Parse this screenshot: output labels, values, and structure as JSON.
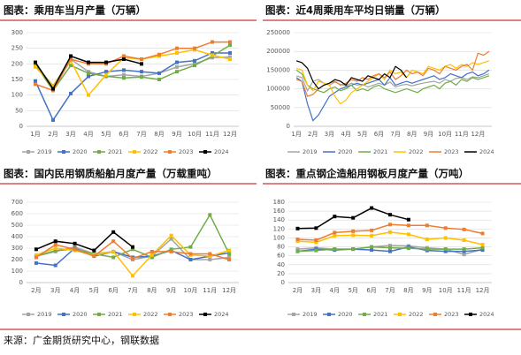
{
  "chart_data": [
    {
      "type": "line",
      "title": "图表：乘用车当月产量（万辆）",
      "markers": true,
      "categories": [
        "1月",
        "2月",
        "3月",
        "4月",
        "5月",
        "6月",
        "7月",
        "8月",
        "9月",
        "10月",
        "11月",
        "12月"
      ],
      "ylim": [
        0,
        300
      ],
      "yticks": [
        0,
        50,
        100,
        150,
        200,
        250,
        300
      ],
      "series": [
        {
          "name": "2019",
          "color": "#a5a5a5",
          "values": [
            197,
            130,
            215,
            175,
            160,
            165,
            160,
            170,
            190,
            200,
            220,
            222
          ]
        },
        {
          "name": "2020",
          "color": "#4472c4",
          "values": [
            145,
            20,
            105,
            160,
            175,
            180,
            175,
            170,
            205,
            210,
            235,
            235
          ]
        },
        {
          "name": "2021",
          "color": "#70ad47",
          "values": [
            198,
            115,
            195,
            170,
            160,
            155,
            158,
            150,
            175,
            195,
            225,
            260
          ]
        },
        {
          "name": "2022",
          "color": "#ffc000",
          "values": [
            190,
            130,
            210,
            100,
            165,
            220,
            215,
            225,
            235,
            245,
            228,
            215
          ]
        },
        {
          "name": "2023",
          "color": "#ed7d31",
          "values": [
            135,
            115,
            215,
            200,
            200,
            225,
            215,
            230,
            250,
            250,
            270,
            270
          ]
        },
        {
          "name": "2024",
          "color": "#000000",
          "values": [
            205,
            120,
            225,
            205,
            205,
            215,
            200,
            null,
            null,
            null,
            null,
            null
          ]
        }
      ]
    },
    {
      "type": "line",
      "title": "图表：近4周乘用车平均日销量（万辆）",
      "markers": false,
      "categories": [
        "1月",
        null,
        null,
        "2月",
        null,
        null,
        "3月",
        null,
        null,
        "4月",
        null,
        null,
        "5月",
        null,
        null,
        "6月",
        null,
        null,
        "7月",
        null,
        null,
        "8月",
        null,
        null,
        "9月",
        null,
        null,
        "10月",
        null,
        null,
        "11月",
        null,
        null,
        "12月",
        null,
        null
      ],
      "ylim": [
        0,
        250000
      ],
      "yticks": [
        0,
        50000,
        100000,
        150000,
        200000,
        250000
      ],
      "series": [
        {
          "name": "2019",
          "color": "#a5a5a5",
          "values": [
            135000,
            130000,
            95000,
            120000,
            125000,
            115000,
            110000,
            118000,
            112000,
            108000,
            115000,
            110000,
            112000,
            105000,
            110000,
            115000,
            110000,
            118000,
            105000,
            110000,
            112000,
            108000,
            112000,
            115000,
            118000,
            120000,
            115000,
            125000,
            120000,
            128000,
            130000,
            125000,
            132000,
            130000,
            135000,
            140000
          ]
        },
        {
          "name": "2020",
          "color": "#4472c4",
          "values": [
            130000,
            120000,
            60000,
            15000,
            30000,
            55000,
            80000,
            90000,
            100000,
            105000,
            110000,
            115000,
            110000,
            115000,
            120000,
            125000,
            110000,
            130000,
            110000,
            115000,
            120000,
            115000,
            120000,
            125000,
            130000,
            135000,
            125000,
            130000,
            140000,
            135000,
            130000,
            140000,
            145000,
            135000,
            140000,
            150000
          ]
        },
        {
          "name": "2021",
          "color": "#70ad47",
          "values": [
            150000,
            140000,
            110000,
            100000,
            95000,
            90000,
            100000,
            105000,
            95000,
            100000,
            110000,
            95000,
            100000,
            95000,
            105000,
            110000,
            100000,
            95000,
            90000,
            95000,
            100000,
            95000,
            90000,
            100000,
            105000,
            110000,
            100000,
            115000,
            120000,
            110000,
            125000,
            120000,
            130000,
            125000,
            130000,
            135000
          ]
        },
        {
          "name": "2022",
          "color": "#ffc000",
          "values": [
            155000,
            150000,
            110000,
            95000,
            120000,
            115000,
            110000,
            80000,
            60000,
            70000,
            90000,
            100000,
            110000,
            120000,
            130000,
            140000,
            125000,
            150000,
            140000,
            145000,
            130000,
            150000,
            145000,
            140000,
            160000,
            155000,
            150000,
            160000,
            165000,
            155000,
            165000,
            160000,
            170000,
            165000,
            170000,
            175000
          ]
        },
        {
          "name": "2023",
          "color": "#ed7d31",
          "values": [
            125000,
            120000,
            80000,
            85000,
            100000,
            110000,
            115000,
            120000,
            110000,
            115000,
            125000,
            120000,
            130000,
            125000,
            135000,
            140000,
            130000,
            145000,
            125000,
            135000,
            150000,
            140000,
            145000,
            135000,
            155000,
            150000,
            140000,
            160000,
            155000,
            150000,
            160000,
            165000,
            150000,
            195000,
            190000,
            200000
          ]
        },
        {
          "name": "2024",
          "color": "#000000",
          "values": [
            175000,
            170000,
            155000,
            120000,
            100000,
            110000,
            115000,
            125000,
            120000,
            110000,
            130000,
            125000,
            120000,
            135000,
            130000,
            125000,
            140000,
            130000,
            160000,
            150000,
            130000,
            null,
            null,
            null,
            null,
            null,
            null,
            null,
            null,
            null,
            null,
            null,
            null,
            null,
            null,
            null
          ]
        }
      ]
    },
    {
      "type": "line",
      "title": "图表：国内民用钢质船舶月度产量（万载重吨）",
      "markers": true,
      "categories": [
        "2月",
        "3月",
        "4月",
        "5月",
        "6月",
        "7月",
        "8月",
        "9月",
        "10月",
        "11月",
        "12月"
      ],
      "ylim": [
        0,
        700
      ],
      "yticks": [
        0,
        100,
        200,
        300,
        400,
        500,
        600,
        700
      ],
      "series": [
        {
          "name": "2019",
          "color": "#a5a5a5",
          "values": [
            230,
            270,
            310,
            250,
            270,
            200,
            230,
            380,
            200,
            200,
            220
          ]
        },
        {
          "name": "2020",
          "color": "#4472c4",
          "values": [
            170,
            150,
            300,
            230,
            270,
            220,
            230,
            280,
            200,
            230,
            260
          ]
        },
        {
          "name": "2021",
          "color": "#70ad47",
          "values": [
            230,
            280,
            290,
            250,
            220,
            290,
            220,
            290,
            310,
            590,
            250
          ]
        },
        {
          "name": "2022",
          "color": "#ffc000",
          "values": [
            240,
            300,
            280,
            240,
            270,
            60,
            240,
            410,
            240,
            230,
            280
          ]
        },
        {
          "name": "2023",
          "color": "#ed7d31",
          "values": [
            220,
            330,
            290,
            230,
            360,
            210,
            270,
            270,
            250,
            250,
            200
          ]
        },
        {
          "name": "2024",
          "color": "#000000",
          "values": [
            290,
            360,
            340,
            280,
            440,
            310,
            null,
            null,
            null,
            null,
            null
          ]
        }
      ]
    },
    {
      "type": "line",
      "title": "图表：重点钢企造船用钢板月度产量（万吨）",
      "markers": true,
      "categories": [
        "2月",
        "3月",
        "4月",
        "5月",
        "6月",
        "7月",
        "8月",
        "9月",
        "10月",
        "11月",
        "12月"
      ],
      "ylim": [
        0,
        180
      ],
      "yticks": [
        0,
        20,
        40,
        60,
        80,
        100,
        120,
        140,
        160,
        180
      ],
      "series": [
        {
          "name": "2019",
          "color": "#a5a5a5",
          "values": [
            75,
            78,
            75,
            75,
            80,
            83,
            82,
            78,
            75,
            63,
            75
          ]
        },
        {
          "name": "2020",
          "color": "#4472c4",
          "values": [
            70,
            75,
            73,
            75,
            73,
            70,
            80,
            72,
            70,
            70,
            73
          ]
        },
        {
          "name": "2021",
          "color": "#70ad47",
          "values": [
            70,
            72,
            75,
            75,
            80,
            78,
            77,
            75,
            75,
            75,
            78
          ]
        },
        {
          "name": "2022",
          "color": "#ffc000",
          "values": [
            93,
            90,
            105,
            106,
            105,
            113,
            108,
            97,
            100,
            95,
            85
          ]
        },
        {
          "name": "2023",
          "color": "#ed7d31",
          "values": [
            97,
            95,
            112,
            115,
            117,
            130,
            128,
            128,
            122,
            119,
            110
          ]
        },
        {
          "name": "2024",
          "color": "#000000",
          "values": [
            121,
            122,
            148,
            145,
            167,
            152,
            141,
            null,
            null,
            null,
            null
          ]
        }
      ]
    }
  ],
  "source": "来源：广金期货研究中心，钢联数据"
}
